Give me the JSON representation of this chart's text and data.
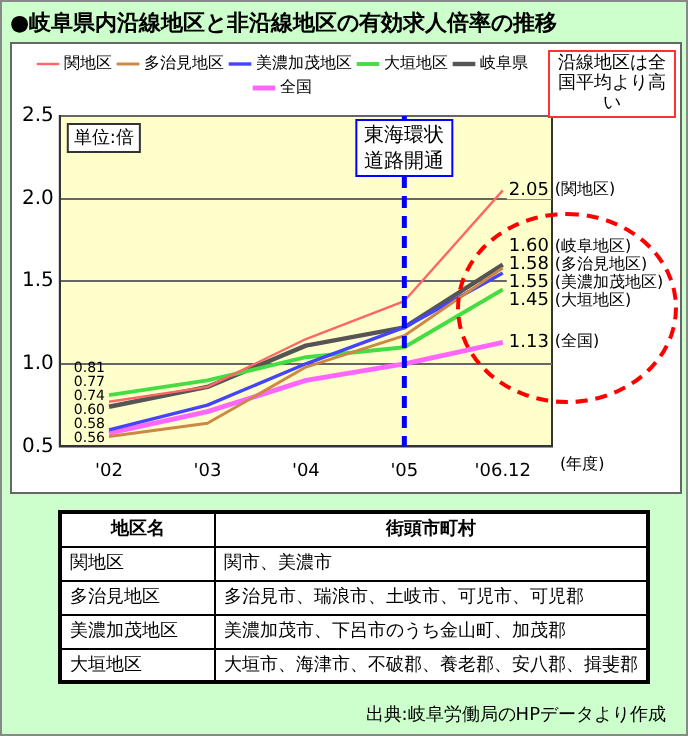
{
  "chart_data": {
    "type": "line",
    "title": "●岐阜県内沿線地区と非沿線地区の有効求人倍率の推移",
    "xlabel": "(年度)",
    "categories": [
      "'02",
      "'03",
      "'04",
      "'05",
      "'06.12"
    ],
    "series": [
      {
        "name": "関地区",
        "color": "#ff6666",
        "values": [
          0.77,
          0.86,
          1.15,
          1.38,
          2.05
        ],
        "value_labels": [
          "0.77",
          null,
          null,
          null,
          "2.05"
        ]
      },
      {
        "name": "多治見地区",
        "color": "#cc8844",
        "values": [
          0.56,
          0.64,
          0.98,
          1.17,
          1.58
        ],
        "value_labels": [
          "0.56",
          null,
          null,
          null,
          "1.58"
        ]
      },
      {
        "name": "美濃加茂地区",
        "color": "#4444ff",
        "values": [
          0.6,
          0.75,
          1.0,
          1.22,
          1.55
        ],
        "value_labels": [
          "0.60",
          null,
          null,
          null,
          "1.55"
        ]
      },
      {
        "name": "大垣地区",
        "color": "#44dd44",
        "values": [
          0.81,
          0.9,
          1.04,
          1.1,
          1.45
        ],
        "value_labels": [
          "0.81",
          null,
          null,
          null,
          "1.45"
        ]
      },
      {
        "name": "岐阜県",
        "color": "#555555",
        "values": [
          0.74,
          0.86,
          1.11,
          1.22,
          1.6
        ],
        "value_labels": [
          "0.74",
          null,
          null,
          null,
          "1.60"
        ]
      },
      {
        "name": "全国",
        "color": "#ff66ff",
        "values": [
          0.58,
          0.71,
          0.9,
          1.0,
          1.13
        ],
        "value_labels": [
          "0.58",
          null,
          null,
          null,
          "1.13"
        ]
      }
    ],
    "ylim": [
      0.5,
      2.5
    ],
    "yticks": [
      {
        "value": 0.5,
        "label": "0.5"
      },
      {
        "value": 1,
        "label": "1.0"
      },
      {
        "value": 1.5,
        "label": "1.5"
      },
      {
        "value": 2,
        "label": "2.0"
      },
      {
        "value": 2.5,
        "label": "2.5"
      }
    ],
    "grid": "y",
    "legend": "top",
    "marker": "none",
    "line_style": "solid",
    "ref_lines": [
      {
        "axis": "x",
        "value": "'05",
        "label": "東海環状道路開通",
        "color": "#0000ff",
        "line_style": "dashed"
      }
    ],
    "annotations": [
      "単位:倍",
      "沿線地区は全国平均より高い",
      "(関地区)",
      "(岐阜地区)",
      "(多治見地区)",
      "(美濃加茂地区)",
      "(大垣地区)",
      "(全国)",
      "地区名",
      "街頭市町村",
      "関地区",
      "関市、美濃市",
      "多治見地区",
      "多治見市、瑞浪市、土岐市、可児市、可児郡",
      "美濃加茂地区",
      "美濃加茂市、下呂市のうち金山町、加茂郡",
      "大垣地区",
      "大垣市、海津市、不破郡、養老郡、安八郡、揖斐郡",
      "出典:岐阜労働局のHPデータより作成"
    ]
  }
}
